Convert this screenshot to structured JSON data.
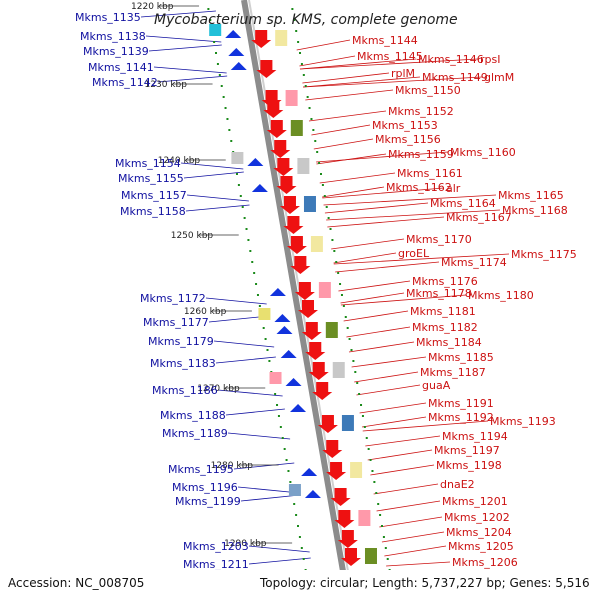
{
  "title": "Mycobacterium sp. KMS, complete genome",
  "footer": {
    "accession": "Accession: NC_008705",
    "topology": "Topology: circular; Length: 5,737,227 bp; Genes: 5,516"
  },
  "ticks": [
    "1220 kbp",
    "1230 kbp",
    "1240 kbp",
    "1250 kbp",
    "1260 kbp",
    "1270 kbp",
    "1280 kbp",
    "1290 kbp"
  ],
  "left_genes": [
    "Mkms_1135",
    "Mkms_1138",
    "Mkms_1139",
    "Mkms_1141",
    "Mkms_1142",
    "Mkms_1154",
    "Mkms_1155",
    "Mkms_1157",
    "Mkms_1158",
    "Mkms_1172",
    "Mkms_1177",
    "Mkms_1179",
    "Mkms_1183",
    "Mkms_1186",
    "Mkms_1188",
    "Mkms_1189",
    "Mkms_1195",
    "Mkms_1196",
    "Mkms_1199",
    "Mkms_1203",
    "Mkms_1211"
  ],
  "right_genes": [
    "Mkms_1144",
    "Mkms_1145",
    "Mkms_1146",
    "rpsI",
    "rplM",
    "Mkms_1149",
    "glmM",
    "Mkms_1150",
    "Mkms_1152",
    "Mkms_1153",
    "Mkms_1156",
    "Mkms_1159",
    "Mkms_1160",
    "Mkms_1161",
    "Mkms_1162",
    "alr",
    "Mkms_1164",
    "Mkms_1165",
    "Mkms_1167",
    "Mkms_1168",
    "Mkms_1170",
    "groEL",
    "Mkms_1174",
    "Mkms_1175",
    "Mkms_1176",
    "Mkms_1178",
    "Mkms_1180",
    "Mkms_1181",
    "Mkms_1182",
    "Mkms_1184",
    "Mkms_1185",
    "Mkms_1187",
    "guaA",
    "Mkms_1191",
    "Mkms_1192",
    "Mkms_1193",
    "Mkms_1194",
    "Mkms_1197",
    "Mkms_1198",
    "dnaE2",
    "Mkms_1201",
    "Mkms_1202",
    "Mkms_1204",
    "Mkms_1205",
    "Mkms_1206"
  ],
  "colors": {
    "left_label": "#1010a0",
    "right_label": "#cc1111",
    "backbone": "#8c8c8c",
    "tick": "#1a8a1a",
    "gene_red": "#ee1111",
    "gene_blue": "#1133dd"
  }
}
